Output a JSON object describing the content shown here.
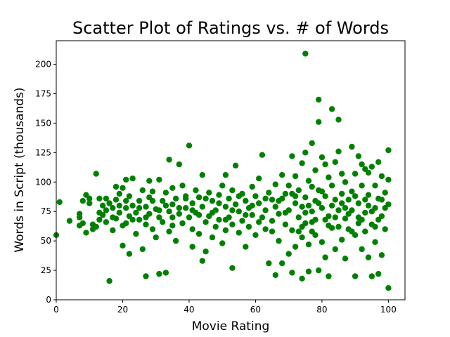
{
  "chart_data": {
    "type": "scatter",
    "title": "Scatter Plot of Ratings vs. # of Words",
    "xlabel": "Movie Rating",
    "ylabel": "Words in Script (thousands)",
    "xlim": [
      0,
      105
    ],
    "ylim": [
      0,
      220
    ],
    "xticks": [
      0,
      20,
      40,
      60,
      80,
      100
    ],
    "yticks": [
      0,
      25,
      50,
      75,
      100,
      125,
      150,
      175,
      200
    ],
    "grid": false,
    "marker_color": "#008000",
    "points": [
      [
        0,
        55
      ],
      [
        1,
        83
      ],
      [
        4,
        67
      ],
      [
        7,
        73
      ],
      [
        7,
        70
      ],
      [
        7,
        63
      ],
      [
        8,
        65
      ],
      [
        8,
        84
      ],
      [
        9,
        89
      ],
      [
        9,
        57
      ],
      [
        10,
        86
      ],
      [
        10,
        82
      ],
      [
        11,
        64
      ],
      [
        11,
        60
      ],
      [
        12,
        62
      ],
      [
        12,
        107
      ],
      [
        13,
        68
      ],
      [
        13,
        86
      ],
      [
        14,
        80
      ],
      [
        14,
        72
      ],
      [
        15,
        76
      ],
      [
        15,
        66
      ],
      [
        16,
        16
      ],
      [
        16,
        82
      ],
      [
        17,
        78
      ],
      [
        17,
        59
      ],
      [
        18,
        96
      ],
      [
        18,
        85
      ],
      [
        18,
        69
      ],
      [
        19,
        90
      ],
      [
        19,
        74
      ],
      [
        20,
        63
      ],
      [
        20,
        95
      ],
      [
        20,
        46
      ],
      [
        21,
        102
      ],
      [
        21,
        78
      ],
      [
        21,
        65
      ],
      [
        22,
        88
      ],
      [
        22,
        71
      ],
      [
        22,
        39
      ],
      [
        23,
        103
      ],
      [
        23,
        80
      ],
      [
        24,
        74
      ],
      [
        24,
        56
      ],
      [
        25,
        84
      ],
      [
        25,
        68
      ],
      [
        26,
        93
      ],
      [
        26,
        43
      ],
      [
        27,
        20
      ],
      [
        27,
        79
      ],
      [
        27,
        64
      ],
      [
        28,
        101
      ],
      [
        28,
        87
      ],
      [
        28,
        73
      ],
      [
        29,
        92
      ],
      [
        29,
        60
      ],
      [
        30,
        77
      ],
      [
        30,
        53
      ],
      [
        31,
        102
      ],
      [
        31,
        70
      ],
      [
        31,
        22
      ],
      [
        32,
        84
      ],
      [
        32,
        66
      ],
      [
        33,
        23
      ],
      [
        33,
        91
      ],
      [
        34,
        119
      ],
      [
        34,
        75
      ],
      [
        34,
        58
      ],
      [
        35,
        95
      ],
      [
        35,
        81
      ],
      [
        35,
        63
      ],
      [
        36,
        86
      ],
      [
        36,
        50
      ],
      [
        37,
        115
      ],
      [
        37,
        73
      ],
      [
        38,
        97
      ],
      [
        38,
        65
      ],
      [
        39,
        88
      ],
      [
        39,
        78
      ],
      [
        40,
        131
      ],
      [
        40,
        70
      ],
      [
        41,
        60
      ],
      [
        41,
        82
      ],
      [
        41,
        45
      ],
      [
        42,
        93
      ],
      [
        42,
        74
      ],
      [
        43,
        87
      ],
      [
        43,
        56
      ],
      [
        44,
        33
      ],
      [
        44,
        106
      ],
      [
        44,
        79
      ],
      [
        45,
        66
      ],
      [
        45,
        41
      ],
      [
        46,
        91
      ],
      [
        46,
        71
      ],
      [
        47,
        84
      ],
      [
        47,
        53
      ],
      [
        48,
        76
      ],
      [
        48,
        62
      ],
      [
        49,
        89
      ],
      [
        49,
        68
      ],
      [
        50,
        97
      ],
      [
        50,
        48
      ],
      [
        51,
        106
      ],
      [
        51,
        79
      ],
      [
        51,
        59
      ],
      [
        52,
        86
      ],
      [
        52,
        70
      ],
      [
        53,
        27
      ],
      [
        53,
        93
      ],
      [
        53,
        64
      ],
      [
        54,
        114
      ],
      [
        54,
        81
      ],
      [
        55,
        75
      ],
      [
        55,
        57
      ],
      [
        56,
        90
      ],
      [
        56,
        67
      ],
      [
        57,
        84
      ],
      [
        57,
        45
      ],
      [
        58,
        78
      ],
      [
        58,
        62
      ],
      [
        59,
        96
      ],
      [
        59,
        72
      ],
      [
        60,
        88
      ],
      [
        60,
        55
      ],
      [
        61,
        103
      ],
      [
        61,
        82
      ],
      [
        62,
        123
      ],
      [
        62,
        70
      ],
      [
        63,
        76
      ],
      [
        63,
        60
      ],
      [
        64,
        91
      ],
      [
        64,
        31
      ],
      [
        65,
        85
      ],
      [
        65,
        67
      ],
      [
        66,
        21
      ],
      [
        66,
        98
      ],
      [
        66,
        79
      ],
      [
        67,
        73
      ],
      [
        67,
        50
      ],
      [
        68,
        106
      ],
      [
        68,
        86
      ],
      [
        68,
        31
      ],
      [
        69,
        90
      ],
      [
        69,
        64
      ],
      [
        70,
        39
      ],
      [
        70,
        97
      ],
      [
        70,
        76
      ],
      [
        71,
        122
      ],
      [
        71,
        59
      ],
      [
        71,
        23
      ],
      [
        72,
        105
      ],
      [
        72,
        82
      ],
      [
        72,
        45
      ],
      [
        73,
        93
      ],
      [
        73,
        70
      ],
      [
        74,
        18
      ],
      [
        74,
        116
      ],
      [
        74,
        79
      ],
      [
        74,
        53
      ],
      [
        75,
        209
      ],
      [
        75,
        125
      ],
      [
        75,
        87
      ],
      [
        75,
        65
      ],
      [
        76,
        101
      ],
      [
        76,
        47
      ],
      [
        76,
        24
      ],
      [
        77,
        133
      ],
      [
        77,
        96
      ],
      [
        77,
        75
      ],
      [
        77,
        58
      ],
      [
        78,
        110
      ],
      [
        78,
        84
      ],
      [
        78,
        68
      ],
      [
        79,
        170
      ],
      [
        79,
        151
      ],
      [
        79,
        93
      ],
      [
        79,
        25
      ],
      [
        80,
        121
      ],
      [
        80,
        78
      ],
      [
        80,
        49
      ],
      [
        81,
        115
      ],
      [
        81,
        88
      ],
      [
        81,
        36
      ],
      [
        82,
        104
      ],
      [
        82,
        71
      ],
      [
        82,
        20
      ],
      [
        83,
        162
      ],
      [
        83,
        97
      ],
      [
        83,
        61
      ],
      [
        84,
        117
      ],
      [
        84,
        85
      ],
      [
        84,
        43
      ],
      [
        85,
        126
      ],
      [
        85,
        153
      ],
      [
        85,
        76
      ],
      [
        86,
        107
      ],
      [
        86,
        90
      ],
      [
        86,
        51
      ],
      [
        87,
        100
      ],
      [
        87,
        69
      ],
      [
        87,
        35
      ],
      [
        88,
        85
      ],
      [
        88,
        60
      ],
      [
        89,
        130
      ],
      [
        89,
        92
      ],
      [
        89,
        76
      ],
      [
        90,
        20
      ],
      [
        90,
        107
      ],
      [
        90,
        55
      ],
      [
        91,
        122
      ],
      [
        91,
        82
      ],
      [
        91,
        65
      ],
      [
        92,
        115
      ],
      [
        92,
        97
      ],
      [
        92,
        43
      ],
      [
        93,
        111
      ],
      [
        93,
        74
      ],
      [
        93,
        58
      ],
      [
        94,
        108
      ],
      [
        94,
        89
      ],
      [
        94,
        36
      ],
      [
        95,
        113
      ],
      [
        95,
        64
      ],
      [
        95,
        20
      ],
      [
        96,
        97
      ],
      [
        96,
        78
      ],
      [
        96,
        49
      ],
      [
        97,
        117
      ],
      [
        97,
        86
      ],
      [
        97,
        22
      ],
      [
        98,
        105
      ],
      [
        98,
        71
      ],
      [
        98,
        38
      ],
      [
        99,
        91
      ],
      [
        99,
        60
      ],
      [
        100,
        127
      ],
      [
        100,
        102
      ],
      [
        100,
        81
      ],
      [
        100,
        10
      ],
      [
        72,
        88
      ],
      [
        74,
        62
      ],
      [
        76,
        80
      ],
      [
        78,
        55
      ],
      [
        80,
        92
      ],
      [
        82,
        63
      ],
      [
        84,
        70
      ],
      [
        86,
        82
      ],
      [
        88,
        73
      ],
      [
        90,
        88
      ],
      [
        92,
        68
      ],
      [
        94,
        80
      ],
      [
        96,
        62
      ],
      [
        98,
        85
      ],
      [
        91,
        70
      ],
      [
        93,
        85
      ],
      [
        95,
        75
      ],
      [
        97,
        68
      ],
      [
        99,
        78
      ],
      [
        89,
        58
      ],
      [
        87,
        78
      ],
      [
        85,
        62
      ],
      [
        83,
        80
      ],
      [
        81,
        68
      ],
      [
        79,
        82
      ],
      [
        77,
        66
      ],
      [
        75,
        74
      ],
      [
        73,
        58
      ],
      [
        71,
        90
      ],
      [
        69,
        74
      ],
      [
        67,
        84
      ],
      [
        65,
        58
      ],
      [
        63,
        86
      ],
      [
        61,
        66
      ],
      [
        59,
        80
      ],
      [
        57,
        72
      ],
      [
        55,
        88
      ],
      [
        53,
        76
      ],
      [
        51,
        68
      ],
      [
        49,
        82
      ],
      [
        47,
        74
      ],
      [
        45,
        86
      ],
      [
        43,
        72
      ],
      [
        41,
        76
      ],
      [
        39,
        86
      ],
      [
        37,
        78
      ],
      [
        35,
        70
      ],
      [
        33,
        80
      ],
      [
        31,
        76
      ],
      [
        29,
        84
      ],
      [
        27,
        70
      ],
      [
        25,
        78
      ],
      [
        23,
        68
      ],
      [
        21,
        84
      ],
      [
        19,
        80
      ],
      [
        17,
        70
      ],
      [
        15,
        86
      ],
      [
        13,
        74
      ]
    ]
  }
}
